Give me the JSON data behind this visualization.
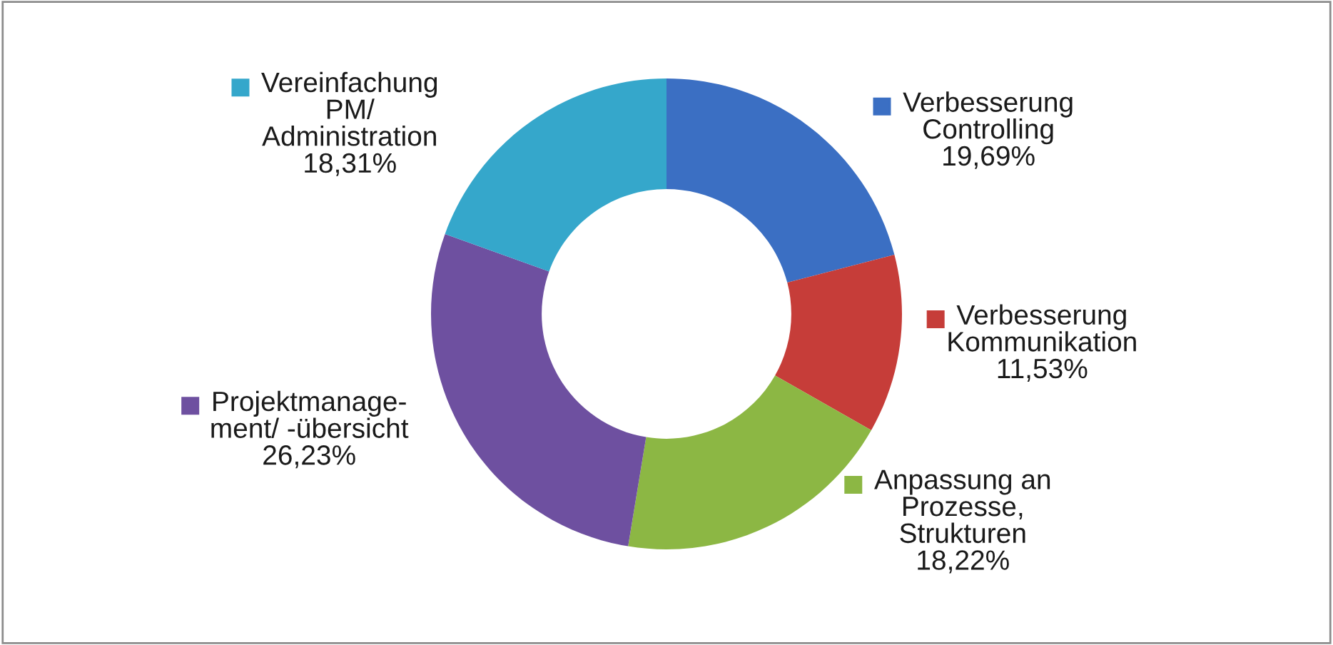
{
  "chart_data": {
    "type": "donut",
    "categories": [
      "Verbesserung\nControlling",
      "Verbesserung\nKommunikation",
      "Anpassung an\nProzesse,\nStrukturen",
      "Projektmanage-\nment/ -übersicht",
      "Vereinfachung\nPM/\nAdministration"
    ],
    "values": [
      19.69,
      11.53,
      18.22,
      26.23,
      18.31
    ],
    "value_labels": [
      "19,69%",
      "11,53%",
      "18,22%",
      "26,23%",
      "18,31%"
    ],
    "colors": [
      "#3b6fc3",
      "#c63d39",
      "#8cb744",
      "#6e50a0",
      "#35a7cb"
    ],
    "legend": "right"
  }
}
